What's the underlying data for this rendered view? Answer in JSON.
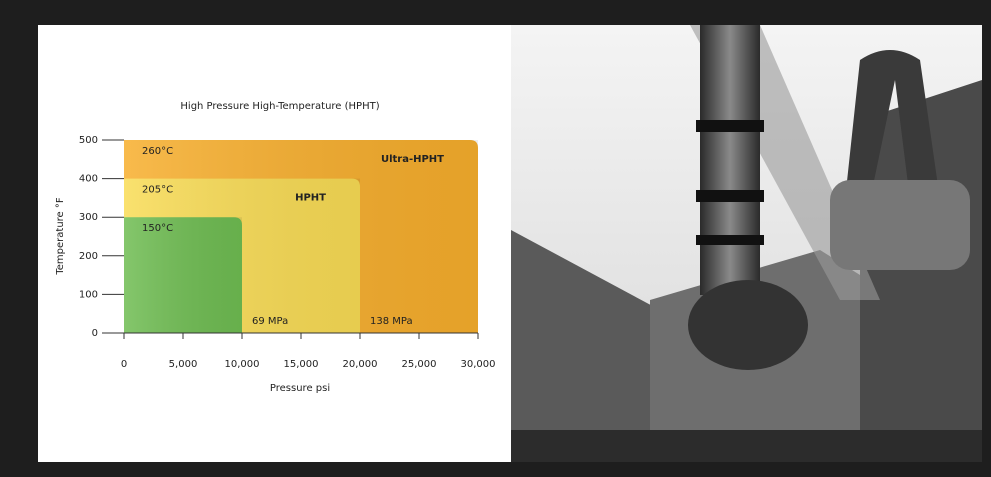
{
  "chart_data": {
    "type": "region",
    "title": "High Pressure High-Temperature (HPHT)",
    "x_label": "Pressure psi",
    "y_label": "Temperature °F",
    "regions": [
      {
        "name": "Ultra-HPHT",
        "temperature_label": "260°C",
        "x": 30000,
        "y": 500,
        "color": "#f7ae2c"
      },
      {
        "name": "HPHT",
        "temperature_label": "205°C",
        "pressure_label": "138 MPa",
        "x": 20000,
        "y": 400,
        "color": "#f9dc55"
      },
      {
        "temperature_label": "150°C",
        "pressure_label": "69 MPa",
        "x": 10000,
        "y": 300,
        "color": "#6fbd52"
      }
    ],
    "xlim": [
      0,
      30000
    ],
    "ylim": [
      0,
      500
    ],
    "xticks": [
      0,
      {
        "value": 5000,
        "label": "5,000"
      },
      {
        "value": 10000,
        "label": "10,000"
      },
      {
        "value": 15000,
        "label": "15,000"
      },
      {
        "value": 20000,
        "label": "20,000"
      },
      {
        "value": 25000,
        "label": "25,000"
      },
      {
        "value": 30000,
        "label": "30,000"
      }
    ],
    "yticks": [
      0,
      100,
      200,
      300,
      400,
      500
    ]
  }
}
